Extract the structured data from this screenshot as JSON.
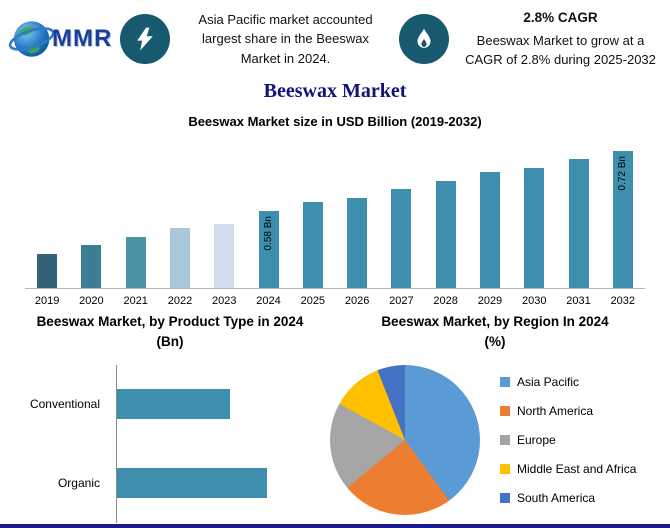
{
  "header": {
    "logo_text": "MMR",
    "headline": "Asia Pacific market accounted largest share in the Beeswax Market in 2024.",
    "cagr_title": "2.8% CAGR",
    "cagr_text": "Beeswax Market to grow at a CAGR of 2.8% during 2025-2032"
  },
  "title": "Beeswax Market",
  "colors": {
    "accent_teal": "#3e8fae",
    "icon_circle_teal": "#17596f",
    "title_navy": "#12127c",
    "bottom_border_navy": "#1b1b8f"
  },
  "chart_data": [
    {
      "type": "bar",
      "title": "Beeswax Market size in USD Billion (2019-2032)",
      "categories": [
        "2019",
        "2020",
        "2021",
        "2022",
        "2023",
        "2024",
        "2025",
        "2026",
        "2027",
        "2028",
        "2029",
        "2030",
        "2031",
        "2032"
      ],
      "values": [
        0.48,
        0.5,
        0.52,
        0.54,
        0.55,
        0.58,
        0.6,
        0.61,
        0.63,
        0.65,
        0.67,
        0.68,
        0.7,
        0.72
      ],
      "ylim": [
        0.4,
        0.75
      ],
      "grid": false,
      "legend": "none",
      "point_labels": {
        "2024": "0.58 Bn",
        "2032": "0.72 Bn"
      },
      "bar_colors": [
        "#33637a",
        "#3c7f95",
        "#4a93a6",
        "#a9c6d8",
        "#cfdeea",
        "#3e8fae",
        "#3e8fae",
        "#3e8fae",
        "#3e8fae",
        "#3e8fae",
        "#3e8fae",
        "#3e8fae",
        "#3e8fae",
        "#3e8fae"
      ]
    },
    {
      "type": "bar",
      "orientation": "horizontal",
      "title": "Beeswax Market, by Product Type in 2024 (Bn)",
      "categories": [
        "Conventional",
        "Organic"
      ],
      "values": [
        0.25,
        0.33
      ],
      "xlim": [
        0,
        0.45
      ],
      "bar_color": "#3e8fae",
      "grid": false,
      "legend": "none"
    },
    {
      "type": "pie",
      "title": "Beeswax Market, by Region In 2024 (%)",
      "categories": [
        "Asia Pacific",
        "North America",
        "Europe",
        "Middle East and Africa",
        "South America"
      ],
      "values": [
        40,
        24,
        19,
        11,
        6
      ],
      "colors": [
        "#5b9bd5",
        "#ed7d31",
        "#a5a5a5",
        "#ffc000",
        "#4472c4"
      ],
      "legend_position": "right"
    }
  ]
}
